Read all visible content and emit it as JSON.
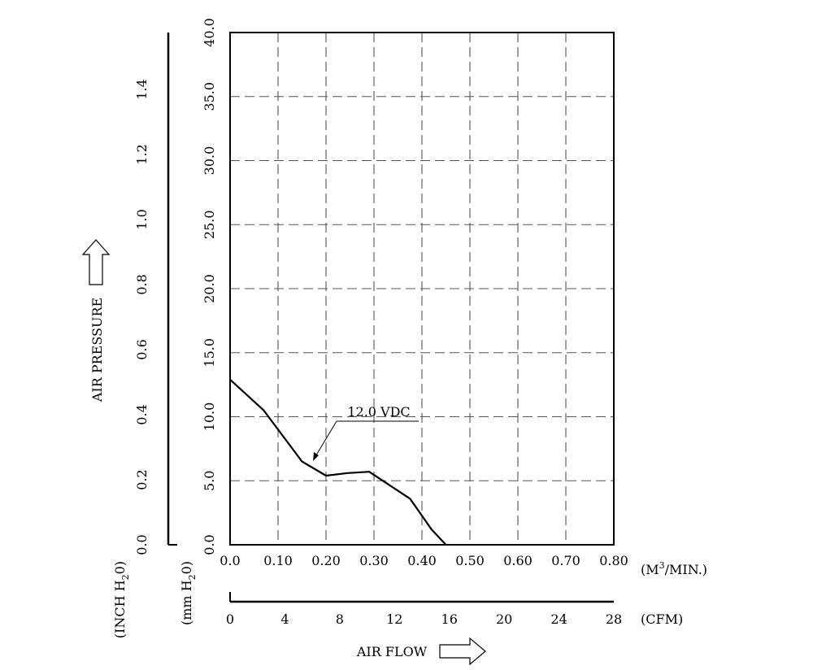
{
  "chart_data": {
    "type": "line",
    "title": "",
    "xlabel": "AIR FLOW",
    "ylabel": "AIR PRESSURE",
    "x_unit": "(M³/MIN.)",
    "x_unit_base": "(M",
    "x_unit_sup": "3",
    "x_unit_tail": "/MIN.)",
    "x_ticks": [
      "0.0",
      "0.10",
      "0.20",
      "0.30",
      "0.40",
      "0.50",
      "0.60",
      "0.70",
      "0.80"
    ],
    "xlim": [
      0,
      0.8
    ],
    "x2_unit": "(CFM)",
    "x2_ticks": [
      "0",
      "4",
      "8",
      "12",
      "16",
      "20",
      "24",
      "28"
    ],
    "x2_tick_values": [
      0,
      4,
      8,
      12,
      16,
      20,
      24,
      28
    ],
    "y_unit": "(mm H₂0)",
    "y_unit_base": "(mm H",
    "y_unit_sub": "2",
    "y_unit_tail": "0)",
    "y_ticks": [
      "0.0",
      "5.0",
      "10.0",
      "15.0",
      "20.0",
      "25.0",
      "30.0",
      "35.0",
      "40.0"
    ],
    "ylim": [
      0,
      40
    ],
    "y2_unit": "(INCH H₂0)",
    "y2_unit_base": "(INCH H",
    "y2_unit_sub": "2",
    "y2_unit_tail": "0)",
    "y2_ticks": [
      "0.0",
      "0.2",
      "0.4",
      "0.6",
      "0.8",
      "1.0",
      "1.2",
      "1.4"
    ],
    "y2_tick_values": [
      0,
      0.2,
      0.4,
      0.6,
      0.8,
      1.0,
      1.2,
      1.4
    ],
    "grid": true,
    "series": [
      {
        "name": "12.0 VDC",
        "x": [
          0.0,
          0.07,
          0.15,
          0.2,
          0.245,
          0.29,
          0.375,
          0.42,
          0.45
        ],
        "y": [
          12.9,
          10.5,
          6.5,
          5.4,
          5.6,
          5.7,
          3.6,
          1.2,
          0.0
        ]
      }
    ]
  }
}
